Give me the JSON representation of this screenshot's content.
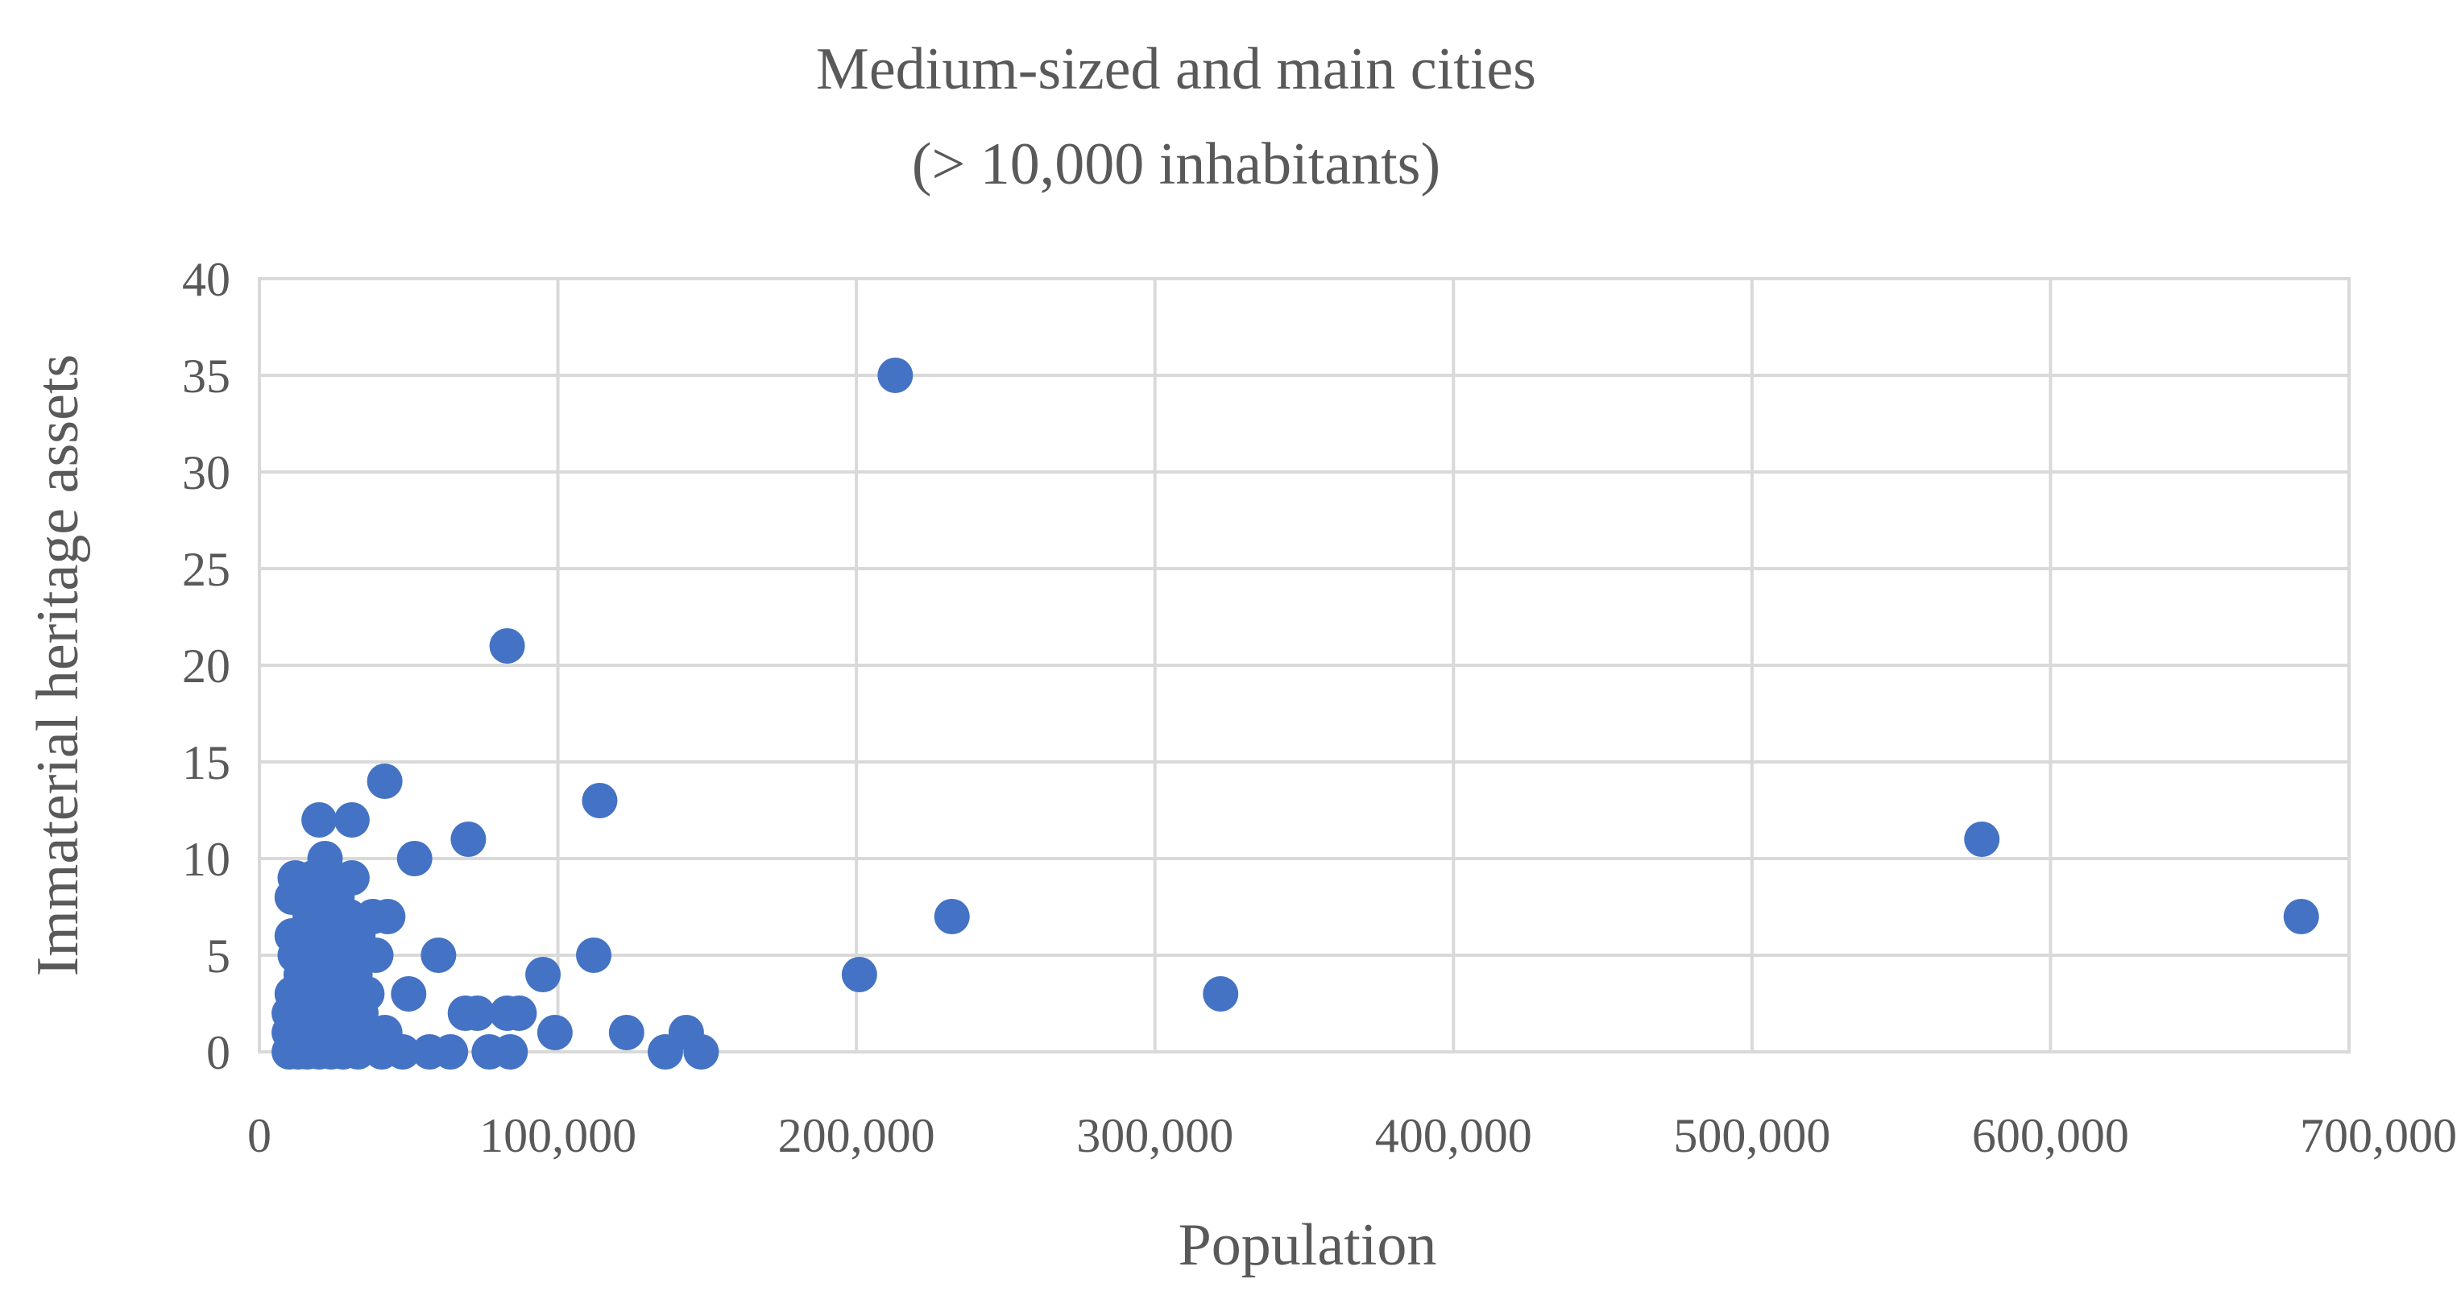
{
  "chart_data": {
    "type": "scatter",
    "title": "Medium-sized and main cities",
    "subtitle": "(> 10,000 inhabitants)",
    "xlabel": "Population",
    "ylabel": "Immaterial heritage assets",
    "xlim": [
      0,
      700000
    ],
    "ylim": [
      0,
      40
    ],
    "x_ticks": [
      0,
      100000,
      200000,
      300000,
      400000,
      500000,
      600000,
      700000
    ],
    "x_tick_labels": [
      "0",
      "100,000",
      "200,000",
      "300,000",
      "400,000",
      "500,000",
      "600,000",
      "700,000"
    ],
    "y_ticks": [
      0,
      5,
      10,
      15,
      20,
      25,
      30,
      35,
      40
    ],
    "y_tick_labels": [
      "0",
      "5",
      "10",
      "15",
      "20",
      "25",
      "30",
      "35",
      "40"
    ],
    "grid": true,
    "legend": "none",
    "marker_color": "#4472c4",
    "points": [
      [
        213000,
        35
      ],
      [
        83000,
        21
      ],
      [
        42000,
        14
      ],
      [
        114000,
        13
      ],
      [
        20000,
        12
      ],
      [
        31000,
        12
      ],
      [
        70000,
        11
      ],
      [
        577000,
        11
      ],
      [
        52000,
        10
      ],
      [
        22000,
        10
      ],
      [
        12000,
        9
      ],
      [
        18000,
        9
      ],
      [
        24000,
        9
      ],
      [
        31000,
        9
      ],
      [
        11000,
        8
      ],
      [
        15000,
        8
      ],
      [
        20000,
        8
      ],
      [
        26000,
        8
      ],
      [
        38000,
        7
      ],
      [
        43000,
        7
      ],
      [
        232000,
        7
      ],
      [
        684000,
        7
      ],
      [
        17000,
        7
      ],
      [
        25000,
        7
      ],
      [
        30000,
        7
      ],
      [
        11000,
        6
      ],
      [
        16000,
        6
      ],
      [
        21000,
        6
      ],
      [
        27000,
        6
      ],
      [
        33000,
        6
      ],
      [
        12000,
        5
      ],
      [
        19000,
        5
      ],
      [
        24000,
        5
      ],
      [
        30000,
        5
      ],
      [
        39000,
        5
      ],
      [
        60000,
        5
      ],
      [
        112000,
        5
      ],
      [
        14000,
        4
      ],
      [
        20000,
        4
      ],
      [
        26000,
        4
      ],
      [
        32000,
        4
      ],
      [
        95000,
        4
      ],
      [
        201000,
        4
      ],
      [
        11000,
        3
      ],
      [
        17000,
        3
      ],
      [
        23000,
        3
      ],
      [
        29000,
        3
      ],
      [
        36000,
        3
      ],
      [
        50000,
        3
      ],
      [
        322000,
        3
      ],
      [
        10000,
        2
      ],
      [
        15000,
        2
      ],
      [
        21000,
        2
      ],
      [
        27000,
        2
      ],
      [
        34000,
        2
      ],
      [
        69000,
        2
      ],
      [
        73000,
        2
      ],
      [
        83000,
        2
      ],
      [
        87000,
        2
      ],
      [
        10000,
        1
      ],
      [
        14000,
        1
      ],
      [
        19000,
        1
      ],
      [
        25000,
        1
      ],
      [
        31000,
        1
      ],
      [
        42000,
        1
      ],
      [
        99000,
        1
      ],
      [
        123000,
        1
      ],
      [
        143000,
        1
      ],
      [
        10000,
        0
      ],
      [
        13000,
        0
      ],
      [
        16000,
        0
      ],
      [
        20000,
        0
      ],
      [
        24000,
        0
      ],
      [
        28000,
        0
      ],
      [
        33000,
        0
      ],
      [
        41000,
        0
      ],
      [
        48000,
        0
      ],
      [
        57000,
        0
      ],
      [
        64000,
        0
      ],
      [
        77000,
        0
      ],
      [
        84000,
        0
      ],
      [
        136000,
        0
      ],
      [
        148000,
        0
      ]
    ]
  }
}
